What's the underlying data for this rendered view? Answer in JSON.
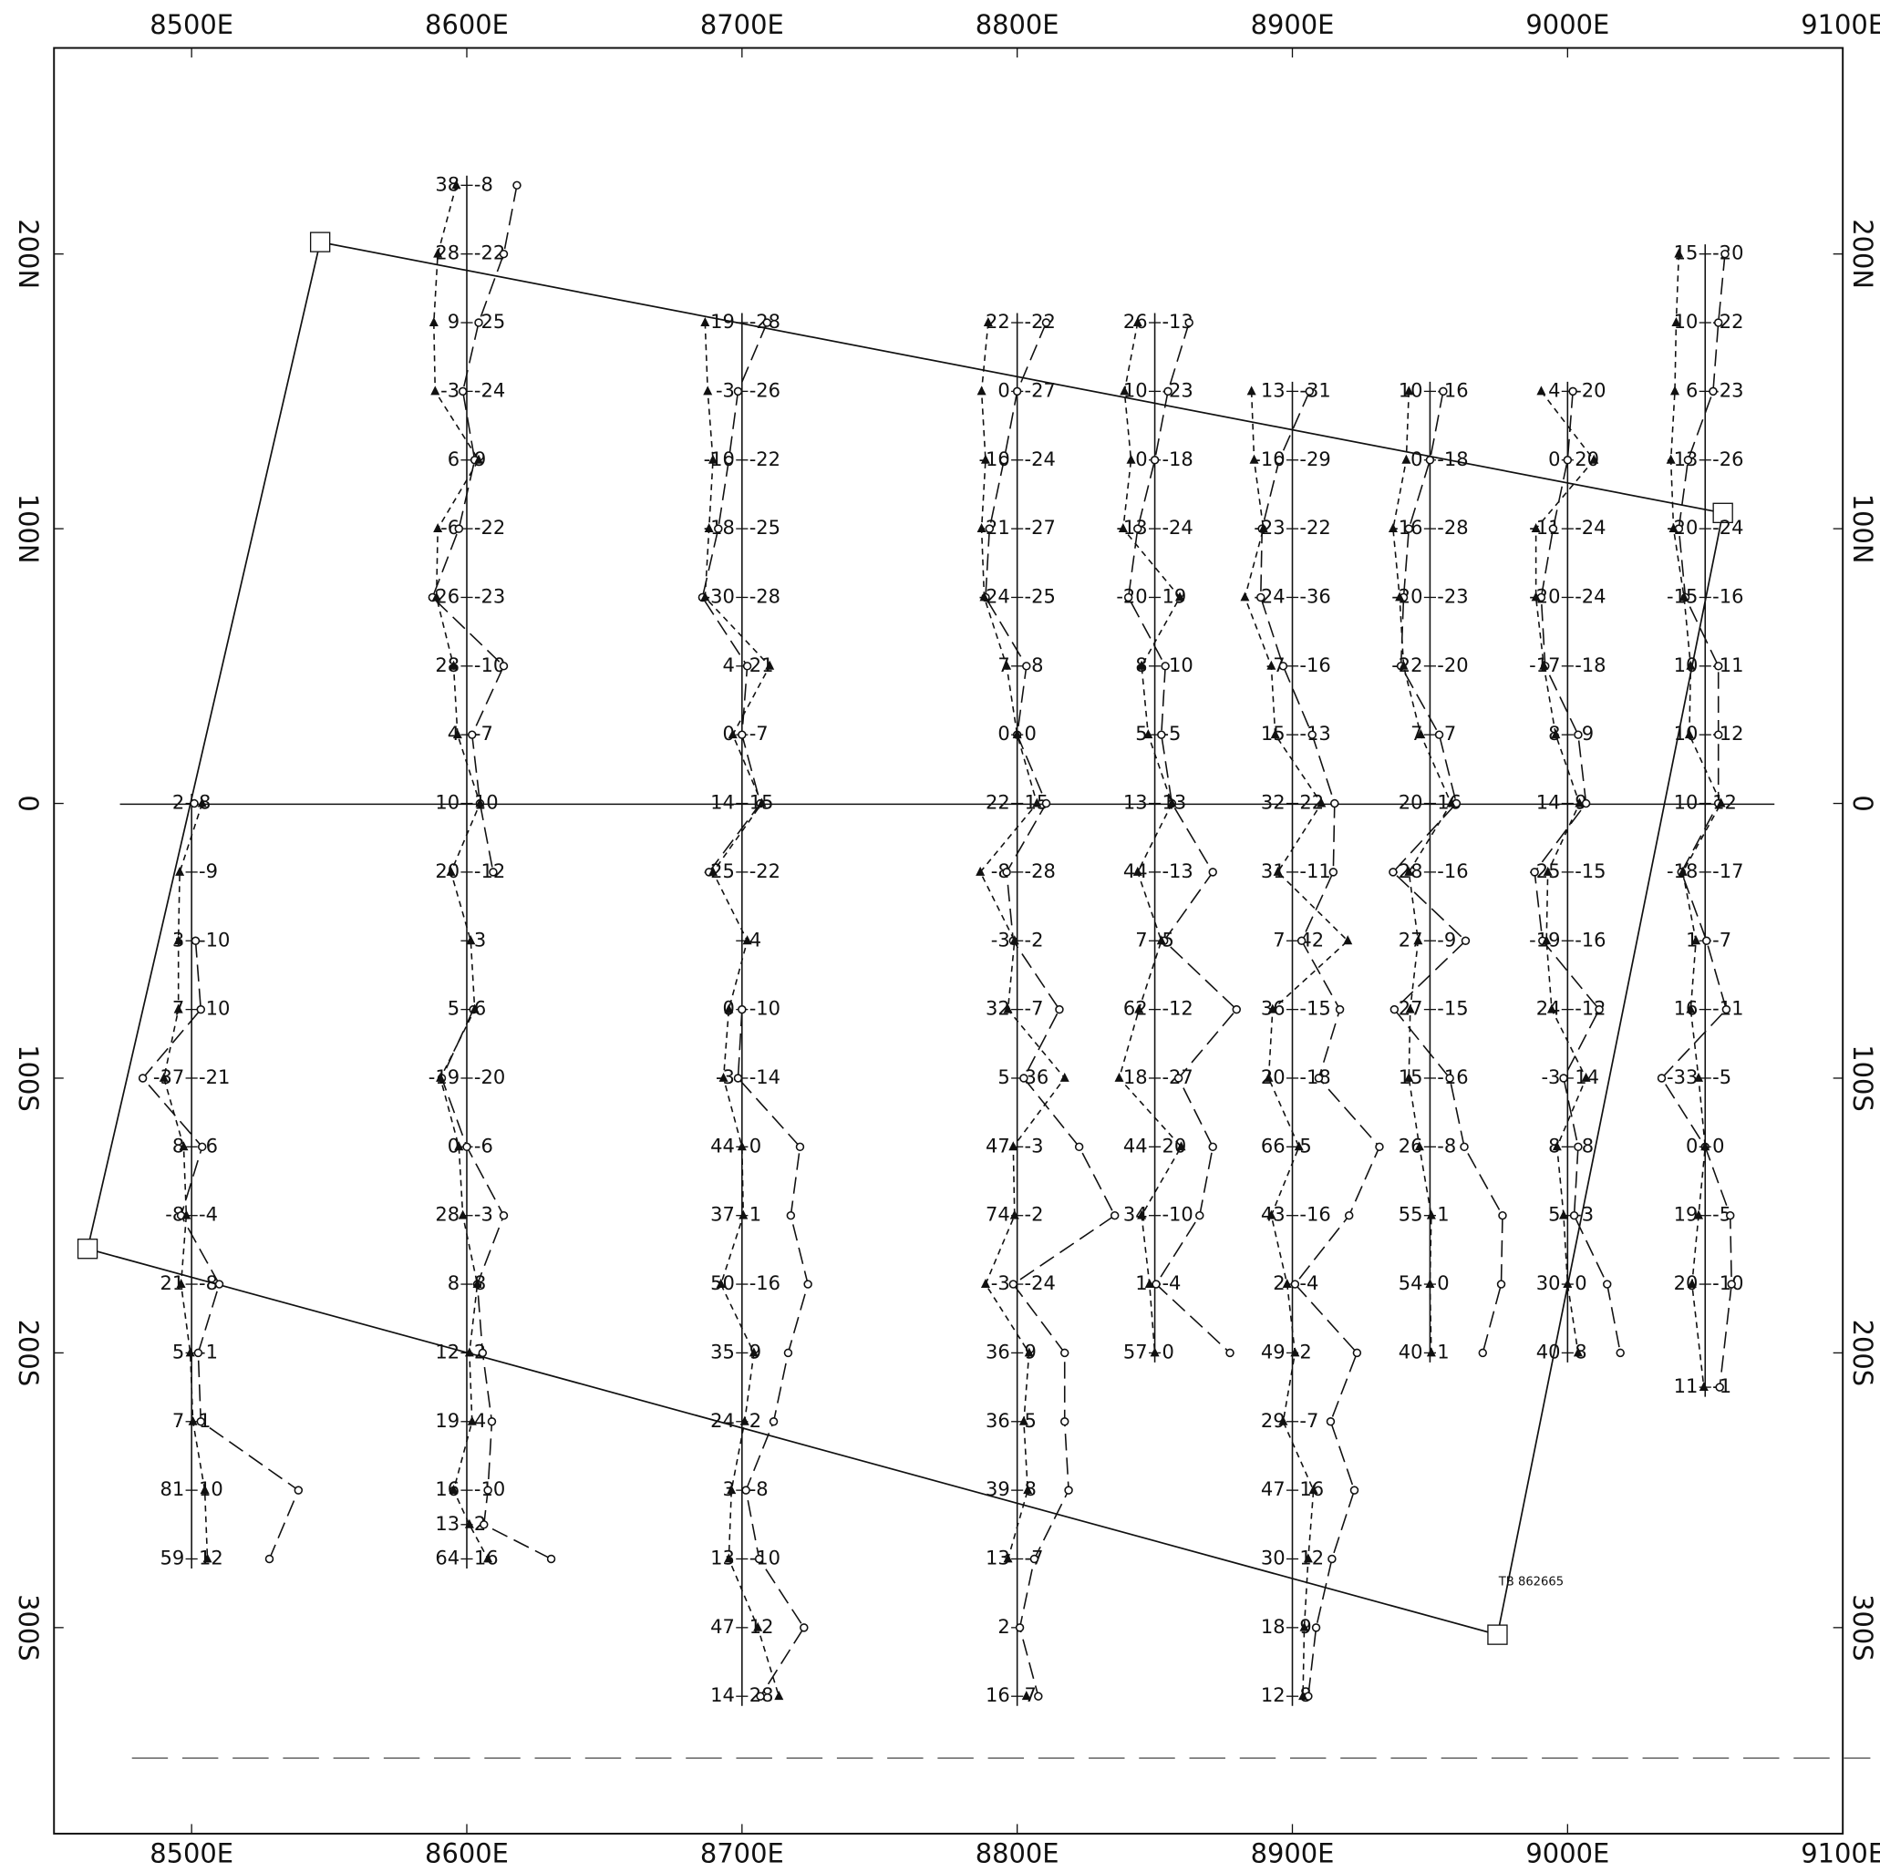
{
  "chart_data": {
    "type": "profile-map",
    "xlim": [
      8450,
      9100
    ],
    "ylim": [
      -375,
      275
    ],
    "xticks": [
      {
        "value": 8500,
        "label": "8500E"
      },
      {
        "value": 8600,
        "label": "8600E"
      },
      {
        "value": 8700,
        "label": "8700E"
      },
      {
        "value": 8800,
        "label": "8800E"
      },
      {
        "value": 8900,
        "label": "8900E"
      },
      {
        "value": 9000,
        "label": "9000E"
      },
      {
        "value": 9100,
        "label": "9100E"
      }
    ],
    "yticks": [
      {
        "value": 200,
        "label": "200N"
      },
      {
        "value": 100,
        "label": "100N"
      },
      0,
      {
        "value": -100,
        "label": "100S"
      },
      {
        "value": -200,
        "label": "200S"
      },
      {
        "value": -300,
        "label": "300S"
      }
    ],
    "color": "#111111",
    "annotation": "TB 862665",
    "lines": [
      {
        "easting": 8500,
        "stations": [
          0,
          -25,
          -50,
          -75,
          -100,
          -125,
          -150,
          -175,
          -200,
          -225,
          -250,
          -275
        ],
        "left": [
          2,
          null,
          3,
          7,
          -37,
          8,
          -8,
          21,
          5,
          7,
          81,
          59
        ],
        "right": [
          8,
          -9,
          -10,
          -10,
          -21,
          -6,
          -4,
          -8,
          -1,
          1,
          10,
          12
        ]
      },
      {
        "easting": 8600,
        "stations": [
          225,
          200,
          175,
          150,
          125,
          100,
          75,
          50,
          25,
          0,
          -25,
          -50,
          -75,
          -100,
          -125,
          -150,
          -175,
          -200,
          -225,
          -250,
          -262.5,
          -275
        ],
        "left": [
          38,
          28,
          9,
          -3,
          6,
          -6,
          -26,
          28,
          4,
          10,
          20,
          null,
          5,
          -19,
          0,
          28,
          8,
          12,
          19,
          16,
          13,
          64
        ],
        "right": [
          -8,
          -22,
          -25,
          -24,
          9,
          -22,
          -23,
          -10,
          -7,
          10,
          -12,
          3,
          6,
          -20,
          -6,
          -3,
          8,
          2,
          4,
          -10,
          2,
          16
        ]
      },
      {
        "easting": 8700,
        "stations": [
          175,
          150,
          125,
          100,
          75,
          50,
          25,
          0,
          -25,
          -50,
          -75,
          -100,
          -125,
          -150,
          -175,
          -200,
          -225,
          -250,
          -275,
          -300,
          -325
        ],
        "left": [
          19,
          -3,
          -10,
          -18,
          -30,
          4,
          0,
          14,
          -25,
          null,
          0,
          -3,
          44,
          37,
          50,
          35,
          24,
          3,
          13,
          47,
          14
        ],
        "right": [
          -28,
          -26,
          -22,
          -25,
          -28,
          21,
          -7,
          15,
          -22,
          4,
          -10,
          -14,
          0,
          1,
          -16,
          9,
          2,
          -8,
          -10,
          12,
          28
        ]
      },
      {
        "easting": 8800,
        "stations": [
          175,
          150,
          125,
          100,
          75,
          50,
          25,
          0,
          -25,
          -50,
          -75,
          -100,
          -125,
          -150,
          -175,
          -200,
          -225,
          -250,
          -275,
          -300,
          -325
        ],
        "left": [
          22,
          0,
          -10,
          -21,
          -24,
          7,
          0,
          22,
          -8,
          -3,
          32,
          5,
          47,
          74,
          -3,
          36,
          36,
          39,
          13,
          2,
          16
        ],
        "right": [
          -22,
          -27,
          -24,
          -27,
          -25,
          -8,
          0,
          15,
          -28,
          -2,
          -7,
          36,
          -3,
          -2,
          -24,
          9,
          5,
          8,
          -7,
          null,
          7
        ]
      },
      {
        "easting": 8850,
        "stations": [
          175,
          150,
          125,
          100,
          75,
          50,
          25,
          0,
          -25,
          -50,
          -75,
          -100,
          -125,
          -150,
          -175,
          -200
        ],
        "left": [
          26,
          10,
          0,
          -13,
          -20,
          8,
          5,
          13,
          44,
          7,
          62,
          18,
          44,
          34,
          1,
          57
        ],
        "right": [
          -13,
          -23,
          -18,
          -24,
          19,
          -10,
          -5,
          13,
          -13,
          5,
          -12,
          -27,
          20,
          -10,
          -4,
          0
        ]
      },
      {
        "easting": 8900,
        "stations": [
          150,
          125,
          100,
          75,
          50,
          25,
          0,
          -25,
          -50,
          -75,
          -100,
          -125,
          -150,
          -175,
          -200,
          -225,
          -250,
          -275,
          -300,
          -325
        ],
        "left": [
          13,
          -10,
          -23,
          -24,
          -7,
          15,
          32,
          31,
          7,
          36,
          20,
          66,
          43,
          2,
          49,
          29,
          47,
          30,
          18,
          12
        ],
        "right": [
          -31,
          -29,
          -22,
          -36,
          -16,
          -13,
          22,
          -11,
          42,
          -15,
          -18,
          5,
          -16,
          -4,
          2,
          -7,
          16,
          12,
          9,
          8
        ]
      },
      {
        "easting": 8950,
        "stations": [
          150,
          125,
          100,
          75,
          50,
          25,
          0,
          -25,
          -50,
          -75,
          -100,
          -125,
          -150,
          -175,
          -200
        ],
        "left": [
          10,
          0,
          -16,
          -20,
          -22,
          7,
          20,
          -28,
          27,
          -27,
          15,
          26,
          55,
          54,
          40
        ],
        "right": [
          -16,
          -18,
          -28,
          -23,
          -20,
          -7,
          16,
          -16,
          -9,
          -15,
          -16,
          -8,
          1,
          0,
          1
        ]
      },
      {
        "easting": 9000,
        "stations": [
          150,
          125,
          100,
          75,
          50,
          25,
          0,
          -25,
          -50,
          -75,
          -100,
          -125,
          -150,
          -175,
          -200
        ],
        "left": [
          4,
          0,
          -11,
          -20,
          -17,
          8,
          14,
          -25,
          -19,
          24,
          -3,
          8,
          5,
          30,
          40
        ],
        "right": [
          -20,
          20,
          -24,
          -24,
          -18,
          -9,
          9,
          -15,
          -16,
          -12,
          14,
          -8,
          -3,
          0,
          8
        ]
      },
      {
        "easting": 9050,
        "stations": [
          200,
          175,
          150,
          125,
          100,
          75,
          50,
          25,
          0,
          -25,
          -50,
          -75,
          -100,
          -125,
          -150,
          -175,
          -212.5
        ],
        "left": [
          15,
          10,
          6,
          -13,
          -20,
          -15,
          10,
          10,
          10,
          -18,
          1,
          16,
          -33,
          0,
          19,
          20,
          11
        ],
        "right": [
          -20,
          -22,
          -23,
          -26,
          -24,
          -16,
          -11,
          -12,
          12,
          -17,
          -7,
          -11,
          -5,
          0,
          -5,
          -10,
          -1
        ]
      }
    ]
  }
}
